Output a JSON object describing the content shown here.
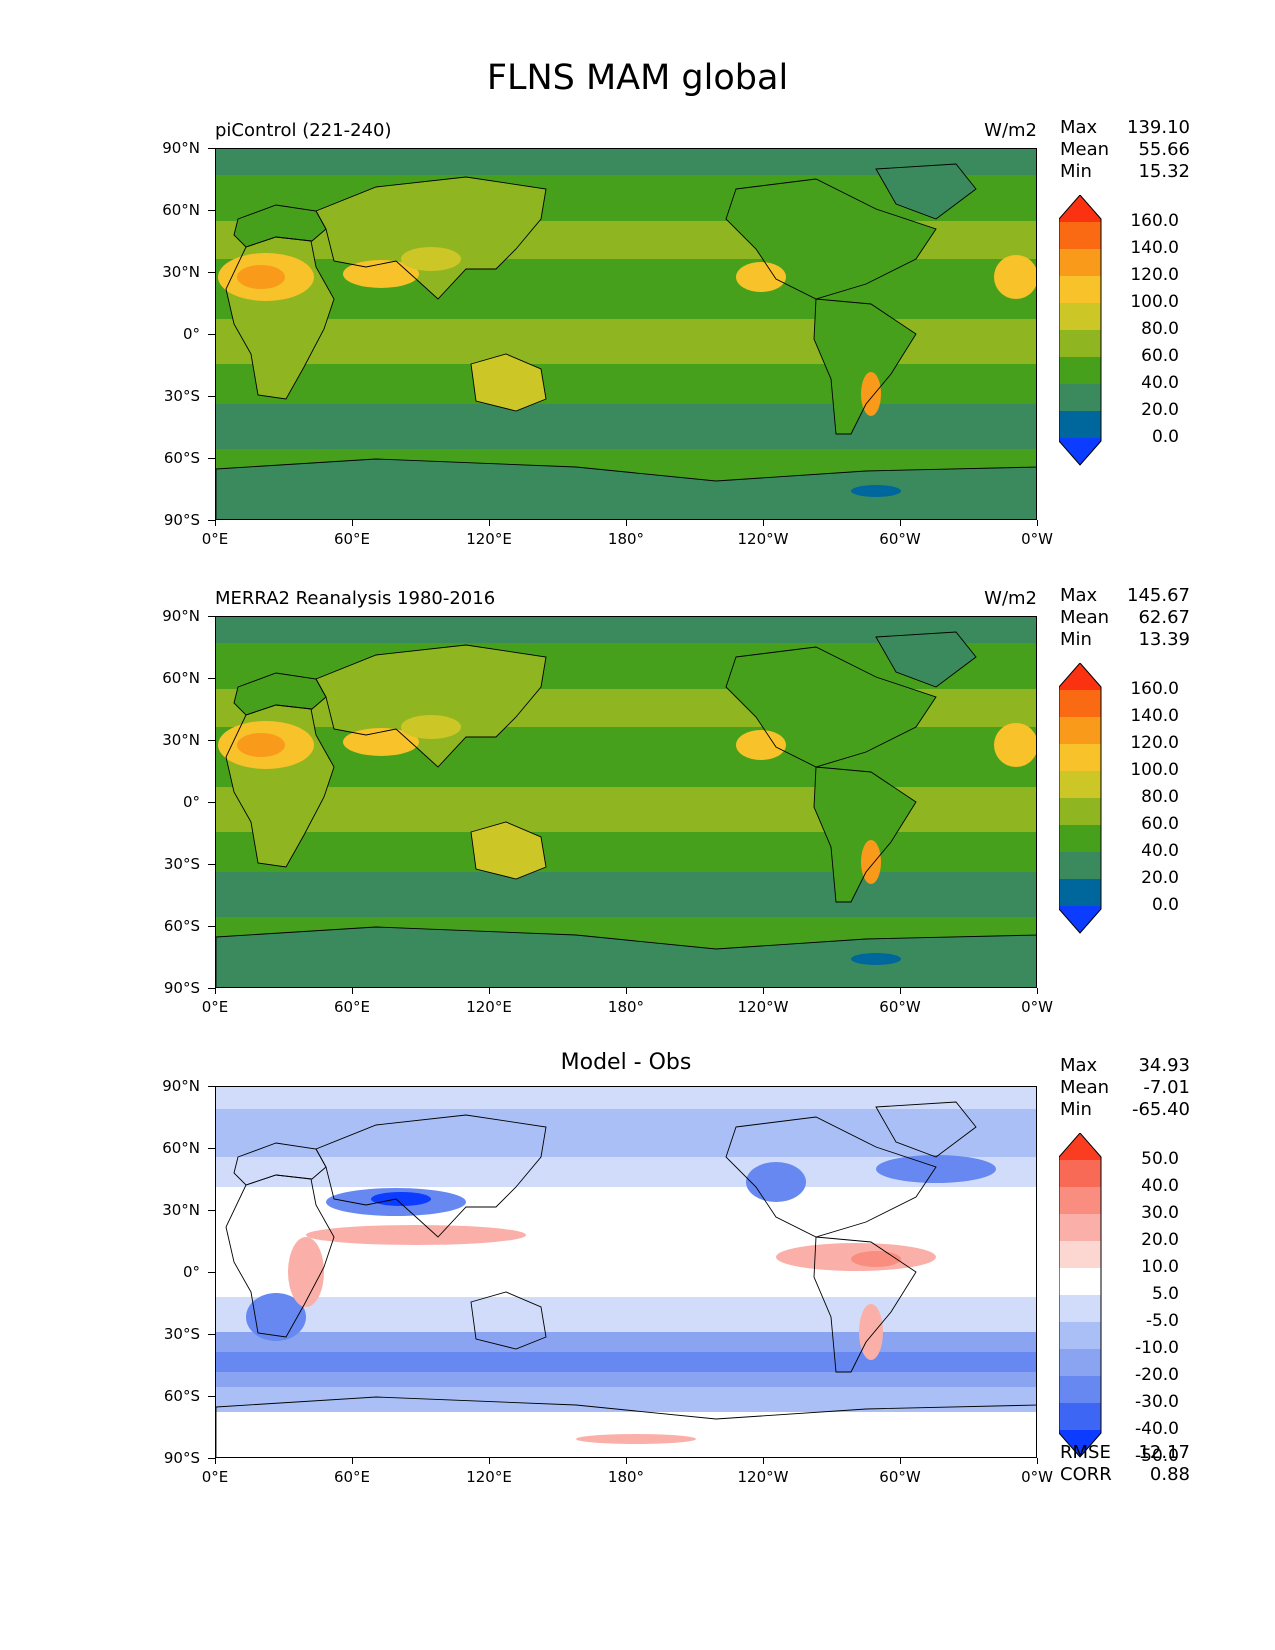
{
  "title": "FLNS MAM global",
  "colors": {
    "seq": [
      "#0c3cff",
      "#00679c",
      "#3a8a5e",
      "#46a01c",
      "#8fb620",
      "#ccc626",
      "#f8c22a",
      "#fa9a1a",
      "#fa6a12",
      "#fa3212"
    ],
    "diff": [
      "#0c3cff",
      "#3d66f4",
      "#6688f0",
      "#8aa4f2",
      "#aabff5",
      "#d0dcfa",
      "#ffffff",
      "#fcd7d2",
      "#fab0a8",
      "#f98e80",
      "#f86a55",
      "#fa3d20"
    ]
  },
  "panels": [
    {
      "label": "piControl (221-240)",
      "units": "W/m2",
      "stats": [
        {
          "name": "Max",
          "value": "139.10"
        },
        {
          "name": "Mean",
          "value": "55.66"
        },
        {
          "name": "Min",
          "value": "15.32"
        }
      ],
      "colorbar_levels": [
        "160.0",
        "140.0",
        "120.0",
        "100.0",
        "80.0",
        "60.0",
        "40.0",
        "20.0",
        "0.0"
      ]
    },
    {
      "label": "MERRA2 Reanalysis 1980-2016",
      "units": "W/m2",
      "stats": [
        {
          "name": "Max",
          "value": "145.67"
        },
        {
          "name": "Mean",
          "value": "62.67"
        },
        {
          "name": "Min",
          "value": "13.39"
        }
      ],
      "colorbar_levels": [
        "160.0",
        "140.0",
        "120.0",
        "100.0",
        "80.0",
        "60.0",
        "40.0",
        "20.0",
        "0.0"
      ]
    },
    {
      "center_title": "Model - Obs",
      "stats": [
        {
          "name": "Max",
          "value": "34.93"
        },
        {
          "name": "Mean",
          "value": "-7.01"
        },
        {
          "name": "Min",
          "value": "-65.40"
        }
      ],
      "colorbar_levels": [
        "50.0",
        "40.0",
        "30.0",
        "20.0",
        "10.0",
        "5.0",
        "-5.0",
        "-10.0",
        "-20.0",
        "-30.0",
        "-40.0",
        "-50.0"
      ],
      "footer": [
        {
          "name": "RMSE",
          "value": "12.17"
        },
        {
          "name": "CORR",
          "value": "0.88"
        }
      ]
    }
  ],
  "axes": {
    "lat_ticks": [
      "90°N",
      "60°N",
      "30°N",
      "0°",
      "30°S",
      "60°S",
      "90°S"
    ],
    "lon_ticks": [
      "0°E",
      "60°E",
      "120°E",
      "180°",
      "120°W",
      "60°W",
      "0°W"
    ]
  }
}
